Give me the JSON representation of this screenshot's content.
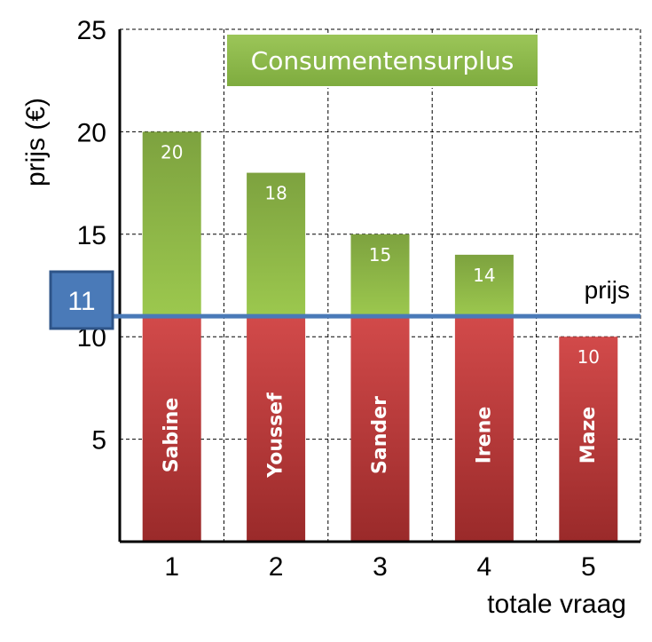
{
  "chart_data": {
    "type": "bar",
    "title": "Consumentensurplus",
    "ylabel": "prijs (€)",
    "xlabel": "totale vraag",
    "categories": [
      "1",
      "2",
      "3",
      "4",
      "5"
    ],
    "names": [
      "Sabine",
      "Youssef",
      "Sander",
      "Irene",
      "Maze"
    ],
    "values": [
      20,
      18,
      15,
      14,
      10
    ],
    "value_labels": [
      "20",
      "18",
      "15",
      "14",
      "10"
    ],
    "ylim": [
      0,
      25
    ],
    "yticks": [
      5,
      10,
      15,
      20,
      25
    ],
    "ytick_labels": [
      "5",
      "10",
      "15",
      "20",
      "25"
    ],
    "grid": true,
    "price": 11,
    "price_box_label": "11",
    "price_line_label": "prijs",
    "colors": {
      "below_price": "#c0393b",
      "above_price": "#8bb94a",
      "price_line": "#4a7ab8",
      "title_bg": "#8bb94a"
    }
  }
}
